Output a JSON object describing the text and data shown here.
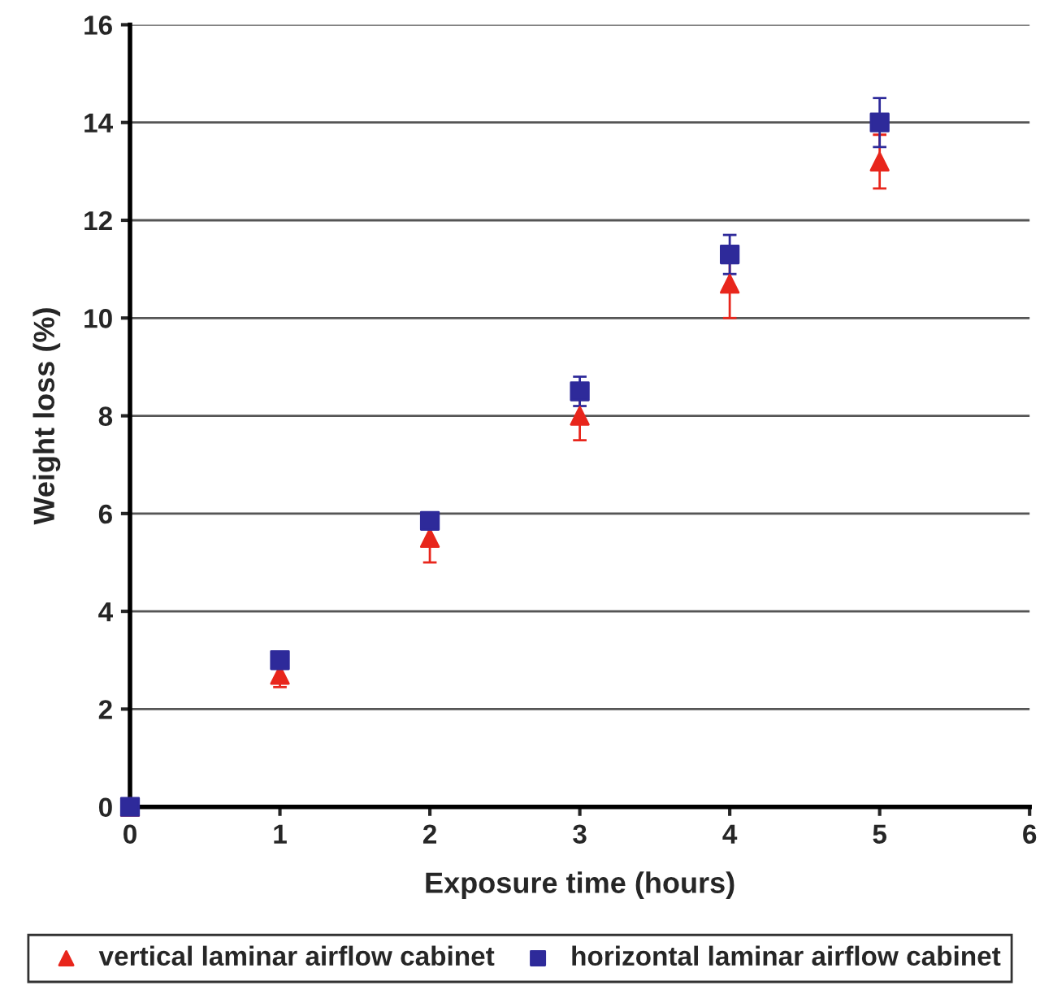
{
  "chart_data": {
    "type": "scatter",
    "xlabel": "Exposure time (hours)",
    "ylabel": "Weight loss (%)",
    "x": [
      0,
      1,
      2,
      3,
      4,
      5
    ],
    "series": [
      {
        "name": "vertical laminar airflow cabinet",
        "color": "#e8261c",
        "marker": "triangle",
        "values": [
          0,
          2.7,
          5.5,
          8.0,
          10.7,
          13.2
        ],
        "errors": [
          null,
          0.25,
          0.5,
          0.5,
          0.7,
          0.55
        ]
      },
      {
        "name": "horizontal laminar airflow cabinet",
        "color": "#2e2a9a",
        "marker": "square",
        "values": [
          0,
          3.0,
          5.85,
          8.5,
          11.3,
          14.0
        ],
        "errors": [
          null,
          0.1,
          0.15,
          0.3,
          0.4,
          0.5
        ]
      }
    ],
    "xlim": [
      0,
      6
    ],
    "xticks": [
      0,
      1,
      2,
      3,
      4,
      5,
      6
    ],
    "ylim": [
      0,
      16
    ],
    "yticks": [
      0,
      2,
      4,
      6,
      8,
      10,
      12,
      14,
      16
    ],
    "grid": "y",
    "legend": "bottom"
  }
}
